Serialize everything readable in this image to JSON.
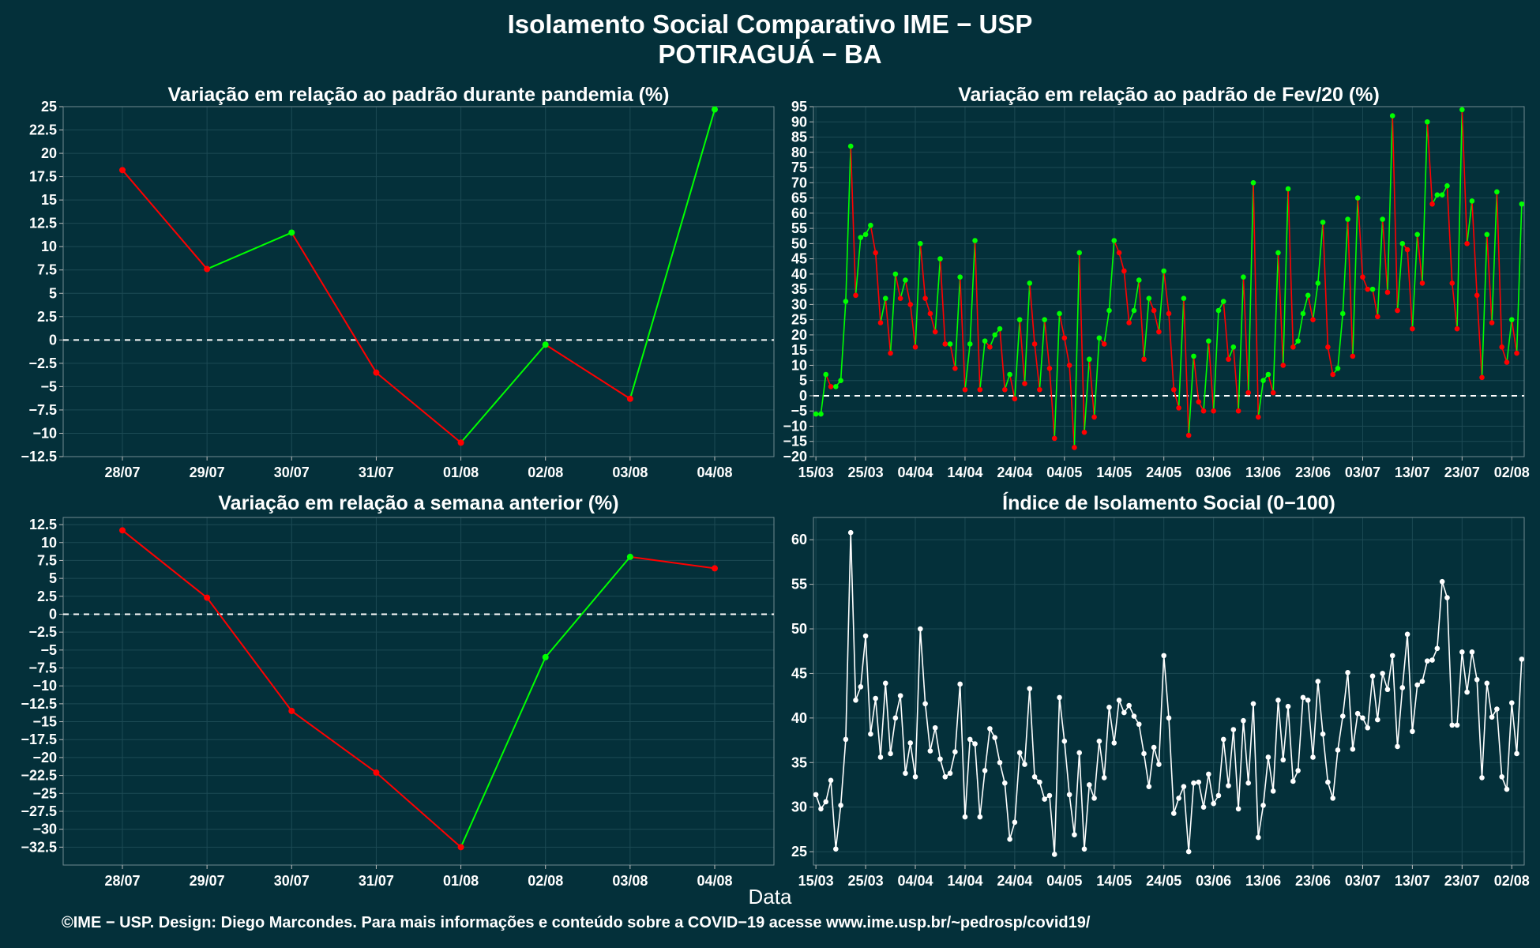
{
  "title": {
    "line1": "Isolamento Social Comparativo IME − USP",
    "line2": "POTIRAGUÁ − BA"
  },
  "x_axis_label": "Data",
  "footer": "©IME − USP. Design: Diego Marcondes. Para mais informações e conteúdo sobre a COVID−19 acesse www.ime.usp.br/~pedrosp/covid19/",
  "colors": {
    "background": "#04303a",
    "grid": "#1c4a54",
    "increase": "#00ff00",
    "decrease": "#ff0000",
    "index_line": "#ffffff"
  },
  "chart_data": [
    {
      "id": "pandemic",
      "type": "line",
      "title": "Variação em relação ao padrão durante pandemia (%)",
      "categories": [
        "28/07",
        "29/07",
        "30/07",
        "31/07",
        "01/08",
        "02/08",
        "03/08",
        "04/08"
      ],
      "values": [
        18.2,
        7.6,
        11.5,
        -3.5,
        -11.0,
        -0.5,
        -6.3,
        24.7
      ],
      "ylim": [
        -12.5,
        25
      ],
      "yticks": [
        -12.5,
        -10,
        -7.5,
        -5,
        -2.5,
        0,
        2.5,
        5,
        7.5,
        10,
        12.5,
        15,
        17.5,
        20,
        22.5,
        25
      ],
      "reference_line": 0,
      "coloring": "green when rising, red when falling",
      "grid": true
    },
    {
      "id": "feb",
      "type": "line",
      "title": "Variação em relação ao padrão de Fev/20 (%)",
      "x_start": "15/03",
      "xtick_labels": [
        "15/03",
        "25/03",
        "04/04",
        "14/04",
        "24/04",
        "04/05",
        "14/05",
        "24/05",
        "03/06",
        "13/06",
        "23/06",
        "03/07",
        "13/07",
        "23/07",
        "02/08"
      ],
      "values": [
        -6,
        -6,
        7,
        3,
        3,
        5,
        31,
        82,
        33,
        52,
        53,
        56,
        47,
        24,
        32,
        14,
        40,
        32,
        38,
        30,
        16,
        50,
        32,
        27,
        21,
        45,
        17,
        17,
        9,
        39,
        2,
        17,
        51,
        2,
        18,
        16,
        20,
        22,
        2,
        7,
        -1,
        25,
        4,
        37,
        17,
        2,
        25,
        9,
        -14,
        27,
        19,
        10,
        -17,
        47,
        -12,
        12,
        -7,
        19,
        17,
        28,
        51,
        47,
        41,
        24,
        28,
        38,
        12,
        32,
        28,
        21,
        41,
        27,
        2,
        -4,
        32,
        -13,
        13,
        -2,
        -5,
        18,
        -5,
        28,
        31,
        12,
        16,
        -5,
        39,
        1,
        70,
        -7,
        5,
        7,
        1,
        47,
        10,
        68,
        16,
        18,
        27,
        33,
        25,
        37,
        57,
        16,
        7,
        9,
        27,
        58,
        13,
        65,
        39,
        35,
        35,
        26,
        58,
        34,
        92,
        28,
        50,
        48,
        22,
        53,
        37,
        90,
        63,
        66,
        66,
        69,
        37,
        22,
        94,
        50,
        64,
        33,
        6,
        53,
        24,
        67,
        16,
        11,
        25,
        14,
        63
      ],
      "ylim": [
        -20,
        95
      ],
      "yticks": [
        -20,
        -15,
        -10,
        -5,
        0,
        5,
        10,
        15,
        20,
        25,
        30,
        35,
        40,
        45,
        50,
        55,
        60,
        65,
        70,
        75,
        80,
        85,
        90,
        95
      ],
      "reference_line": 0,
      "coloring": "green when rising, red when falling",
      "grid": true
    },
    {
      "id": "week",
      "type": "line",
      "title": "Variação em relação a semana anterior (%)",
      "categories": [
        "28/07",
        "29/07",
        "30/07",
        "31/07",
        "01/08",
        "02/08",
        "03/08",
        "04/08"
      ],
      "values": [
        11.7,
        2.3,
        -13.5,
        -22.1,
        -32.5,
        -6.0,
        8.0,
        6.4
      ],
      "ylim": [
        -35,
        13.5
      ],
      "yticks": [
        -32.5,
        -30,
        -27.5,
        -25,
        -22.5,
        -20,
        -17.5,
        -15,
        -12.5,
        -10,
        -7.5,
        -5,
        -2.5,
        0,
        2.5,
        5,
        7.5,
        10,
        12.5
      ],
      "reference_line": 0,
      "coloring": "green when rising, red when falling",
      "grid": true
    },
    {
      "id": "index",
      "type": "line",
      "title": "Índice de Isolamento Social (0−100)",
      "x_start": "15/03",
      "xtick_labels": [
        "15/03",
        "25/03",
        "04/04",
        "14/04",
        "24/04",
        "04/05",
        "14/05",
        "24/05",
        "03/06",
        "13/06",
        "23/06",
        "03/07",
        "13/07",
        "23/07",
        "02/08"
      ],
      "values": [
        31.4,
        29.8,
        30.6,
        33.0,
        25.3,
        30.2,
        37.6,
        60.8,
        42.0,
        43.5,
        49.2,
        38.2,
        42.2,
        35.6,
        43.9,
        36.0,
        40.0,
        42.5,
        33.8,
        37.2,
        33.4,
        50.0,
        41.6,
        36.3,
        38.9,
        35.4,
        33.4,
        33.8,
        36.2,
        43.8,
        28.9,
        37.6,
        37.1,
        28.9,
        34.1,
        38.8,
        37.8,
        35.0,
        32.7,
        26.4,
        28.3,
        36.1,
        34.8,
        43.3,
        33.4,
        32.8,
        30.9,
        31.3,
        24.7,
        42.3,
        37.4,
        31.4,
        26.9,
        36.1,
        25.3,
        32.5,
        31.0,
        37.4,
        33.3,
        41.2,
        37.2,
        42.0,
        40.6,
        41.4,
        40.2,
        39.3,
        36.0,
        32.3,
        36.7,
        34.8,
        47.0,
        40.0,
        29.3,
        31.0,
        32.3,
        25.0,
        32.7,
        32.8,
        30.0,
        33.7,
        30.4,
        31.3,
        37.6,
        32.4,
        38.7,
        29.8,
        39.7,
        32.7,
        41.6,
        26.6,
        30.2,
        35.6,
        31.8,
        42.0,
        35.3,
        41.3,
        32.9,
        34.1,
        42.3,
        42.0,
        35.6,
        44.1,
        38.2,
        32.8,
        31.0,
        36.4,
        40.2,
        45.1,
        36.5,
        40.5,
        40.0,
        38.9,
        44.7,
        39.8,
        45.0,
        43.2,
        47.0,
        36.8,
        43.4,
        49.4,
        38.5,
        43.7,
        44.1,
        46.4,
        46.5,
        47.8,
        55.3,
        53.5,
        39.2,
        39.2,
        47.4,
        42.9,
        47.4,
        44.3,
        33.3,
        43.9,
        40.1,
        41.0,
        33.4,
        32.0,
        41.7,
        36.0,
        46.6
      ],
      "ylim": [
        23.5,
        62.5
      ],
      "yticks": [
        25,
        30,
        35,
        40,
        45,
        50,
        55,
        60
      ],
      "grid": true
    }
  ]
}
